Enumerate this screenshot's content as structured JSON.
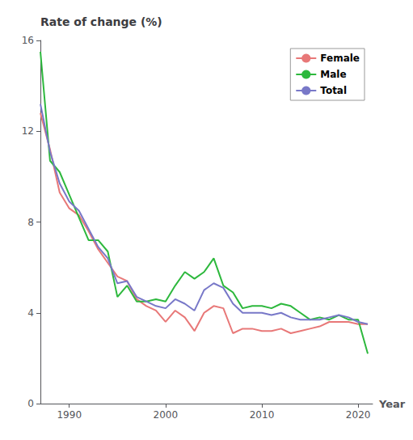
{
  "chart_data": {
    "type": "line",
    "title": "Rate of change (%)",
    "xlabel": "Year",
    "x": [
      1987,
      1988,
      1989,
      1990,
      1991,
      1992,
      1993,
      1994,
      1995,
      1996,
      1997,
      1998,
      1999,
      2000,
      2001,
      2002,
      2003,
      2004,
      2005,
      2006,
      2007,
      2008,
      2009,
      2010,
      2011,
      2012,
      2013,
      2014,
      2015,
      2016,
      2017,
      2018,
      2019,
      2020,
      2021
    ],
    "series": [
      {
        "name": "Female",
        "color": "#E87878",
        "values": [
          12.8,
          11.2,
          9.3,
          8.6,
          8.3,
          7.6,
          6.8,
          6.2,
          5.6,
          5.4,
          4.6,
          4.3,
          4.1,
          3.6,
          4.1,
          3.8,
          3.2,
          4.0,
          4.3,
          4.2,
          3.1,
          3.3,
          3.3,
          3.2,
          3.2,
          3.3,
          3.1,
          3.2,
          3.3,
          3.4,
          3.6,
          3.6,
          3.6,
          3.5,
          3.5
        ]
      },
      {
        "name": "Male",
        "color": "#2DB83D",
        "values": [
          15.5,
          10.7,
          10.2,
          9.2,
          8.2,
          7.2,
          7.2,
          6.7,
          4.7,
          5.2,
          4.5,
          4.5,
          4.6,
          4.5,
          5.2,
          5.8,
          5.5,
          5.8,
          6.4,
          5.2,
          4.9,
          4.2,
          4.3,
          4.3,
          4.2,
          4.4,
          4.3,
          4.0,
          3.7,
          3.8,
          3.7,
          3.9,
          3.7,
          3.7,
          2.2
        ]
      },
      {
        "name": "Total",
        "color": "#7878C8",
        "values": [
          13.2,
          11.1,
          9.7,
          8.9,
          8.5,
          7.7,
          6.9,
          6.4,
          5.3,
          5.4,
          4.7,
          4.5,
          4.3,
          4.2,
          4.6,
          4.4,
          4.1,
          5.0,
          5.3,
          5.1,
          4.4,
          4.0,
          4.0,
          4.0,
          3.9,
          4.0,
          3.8,
          3.7,
          3.7,
          3.7,
          3.8,
          3.9,
          3.8,
          3.6,
          3.5
        ]
      }
    ],
    "xlim": [
      1987,
      2021.5
    ],
    "xticks": [
      1990,
      2000,
      2010,
      2020
    ],
    "ylim": [
      0,
      16
    ],
    "yticks": [
      0,
      4,
      8,
      12,
      16
    ],
    "grid": false,
    "legend": "upper right"
  }
}
